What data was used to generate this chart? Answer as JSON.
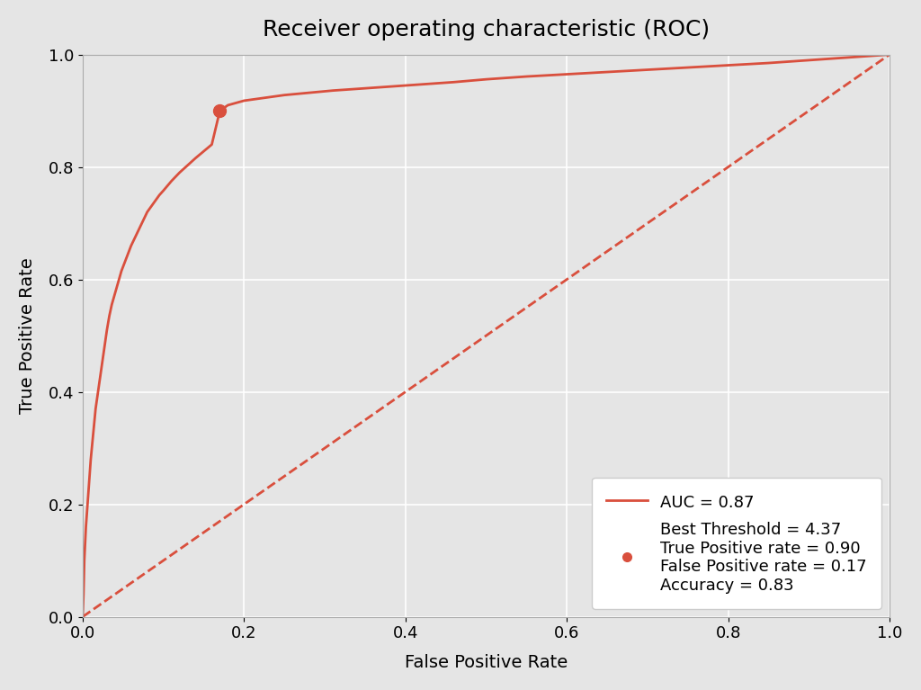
{
  "title": "Receiver operating characteristic (ROC)",
  "xlabel": "False Positive Rate",
  "ylabel": "True Positive Rate",
  "auc": 0.87,
  "best_threshold": 4.37,
  "best_tpr": 0.9,
  "best_fpr": 0.17,
  "accuracy": 0.83,
  "roc_color": "#d94f3d",
  "diag_color": "#d94f3d",
  "point_color": "#d94f3d",
  "background_color": "#e5e5e5",
  "fig_facecolor": "#e5e5e5",
  "title_fontsize": 18,
  "label_fontsize": 14,
  "tick_fontsize": 13,
  "legend_fontsize": 13,
  "fpr_points": [
    0.0,
    0.001,
    0.002,
    0.004,
    0.006,
    0.008,
    0.01,
    0.012,
    0.014,
    0.016,
    0.018,
    0.02,
    0.022,
    0.025,
    0.028,
    0.03,
    0.033,
    0.036,
    0.039,
    0.042,
    0.045,
    0.048,
    0.052,
    0.056,
    0.06,
    0.065,
    0.07,
    0.075,
    0.08,
    0.085,
    0.09,
    0.095,
    0.1,
    0.11,
    0.12,
    0.13,
    0.14,
    0.15,
    0.16,
    0.17,
    0.18,
    0.2,
    0.22,
    0.25,
    0.28,
    0.31,
    0.34,
    0.37,
    0.4,
    0.43,
    0.46,
    0.5,
    0.55,
    0.6,
    0.65,
    0.7,
    0.75,
    0.8,
    0.85,
    0.9,
    0.95,
    1.0
  ],
  "tpr_points": [
    0.0,
    0.04,
    0.1,
    0.16,
    0.2,
    0.24,
    0.28,
    0.31,
    0.34,
    0.37,
    0.39,
    0.41,
    0.43,
    0.46,
    0.49,
    0.51,
    0.535,
    0.555,
    0.57,
    0.585,
    0.6,
    0.615,
    0.63,
    0.645,
    0.66,
    0.675,
    0.69,
    0.705,
    0.72,
    0.73,
    0.74,
    0.75,
    0.758,
    0.775,
    0.79,
    0.803,
    0.816,
    0.828,
    0.84,
    0.9,
    0.91,
    0.918,
    0.922,
    0.928,
    0.932,
    0.936,
    0.939,
    0.942,
    0.945,
    0.948,
    0.951,
    0.956,
    0.961,
    0.965,
    0.969,
    0.973,
    0.977,
    0.981,
    0.985,
    0.99,
    0.995,
    1.0
  ]
}
